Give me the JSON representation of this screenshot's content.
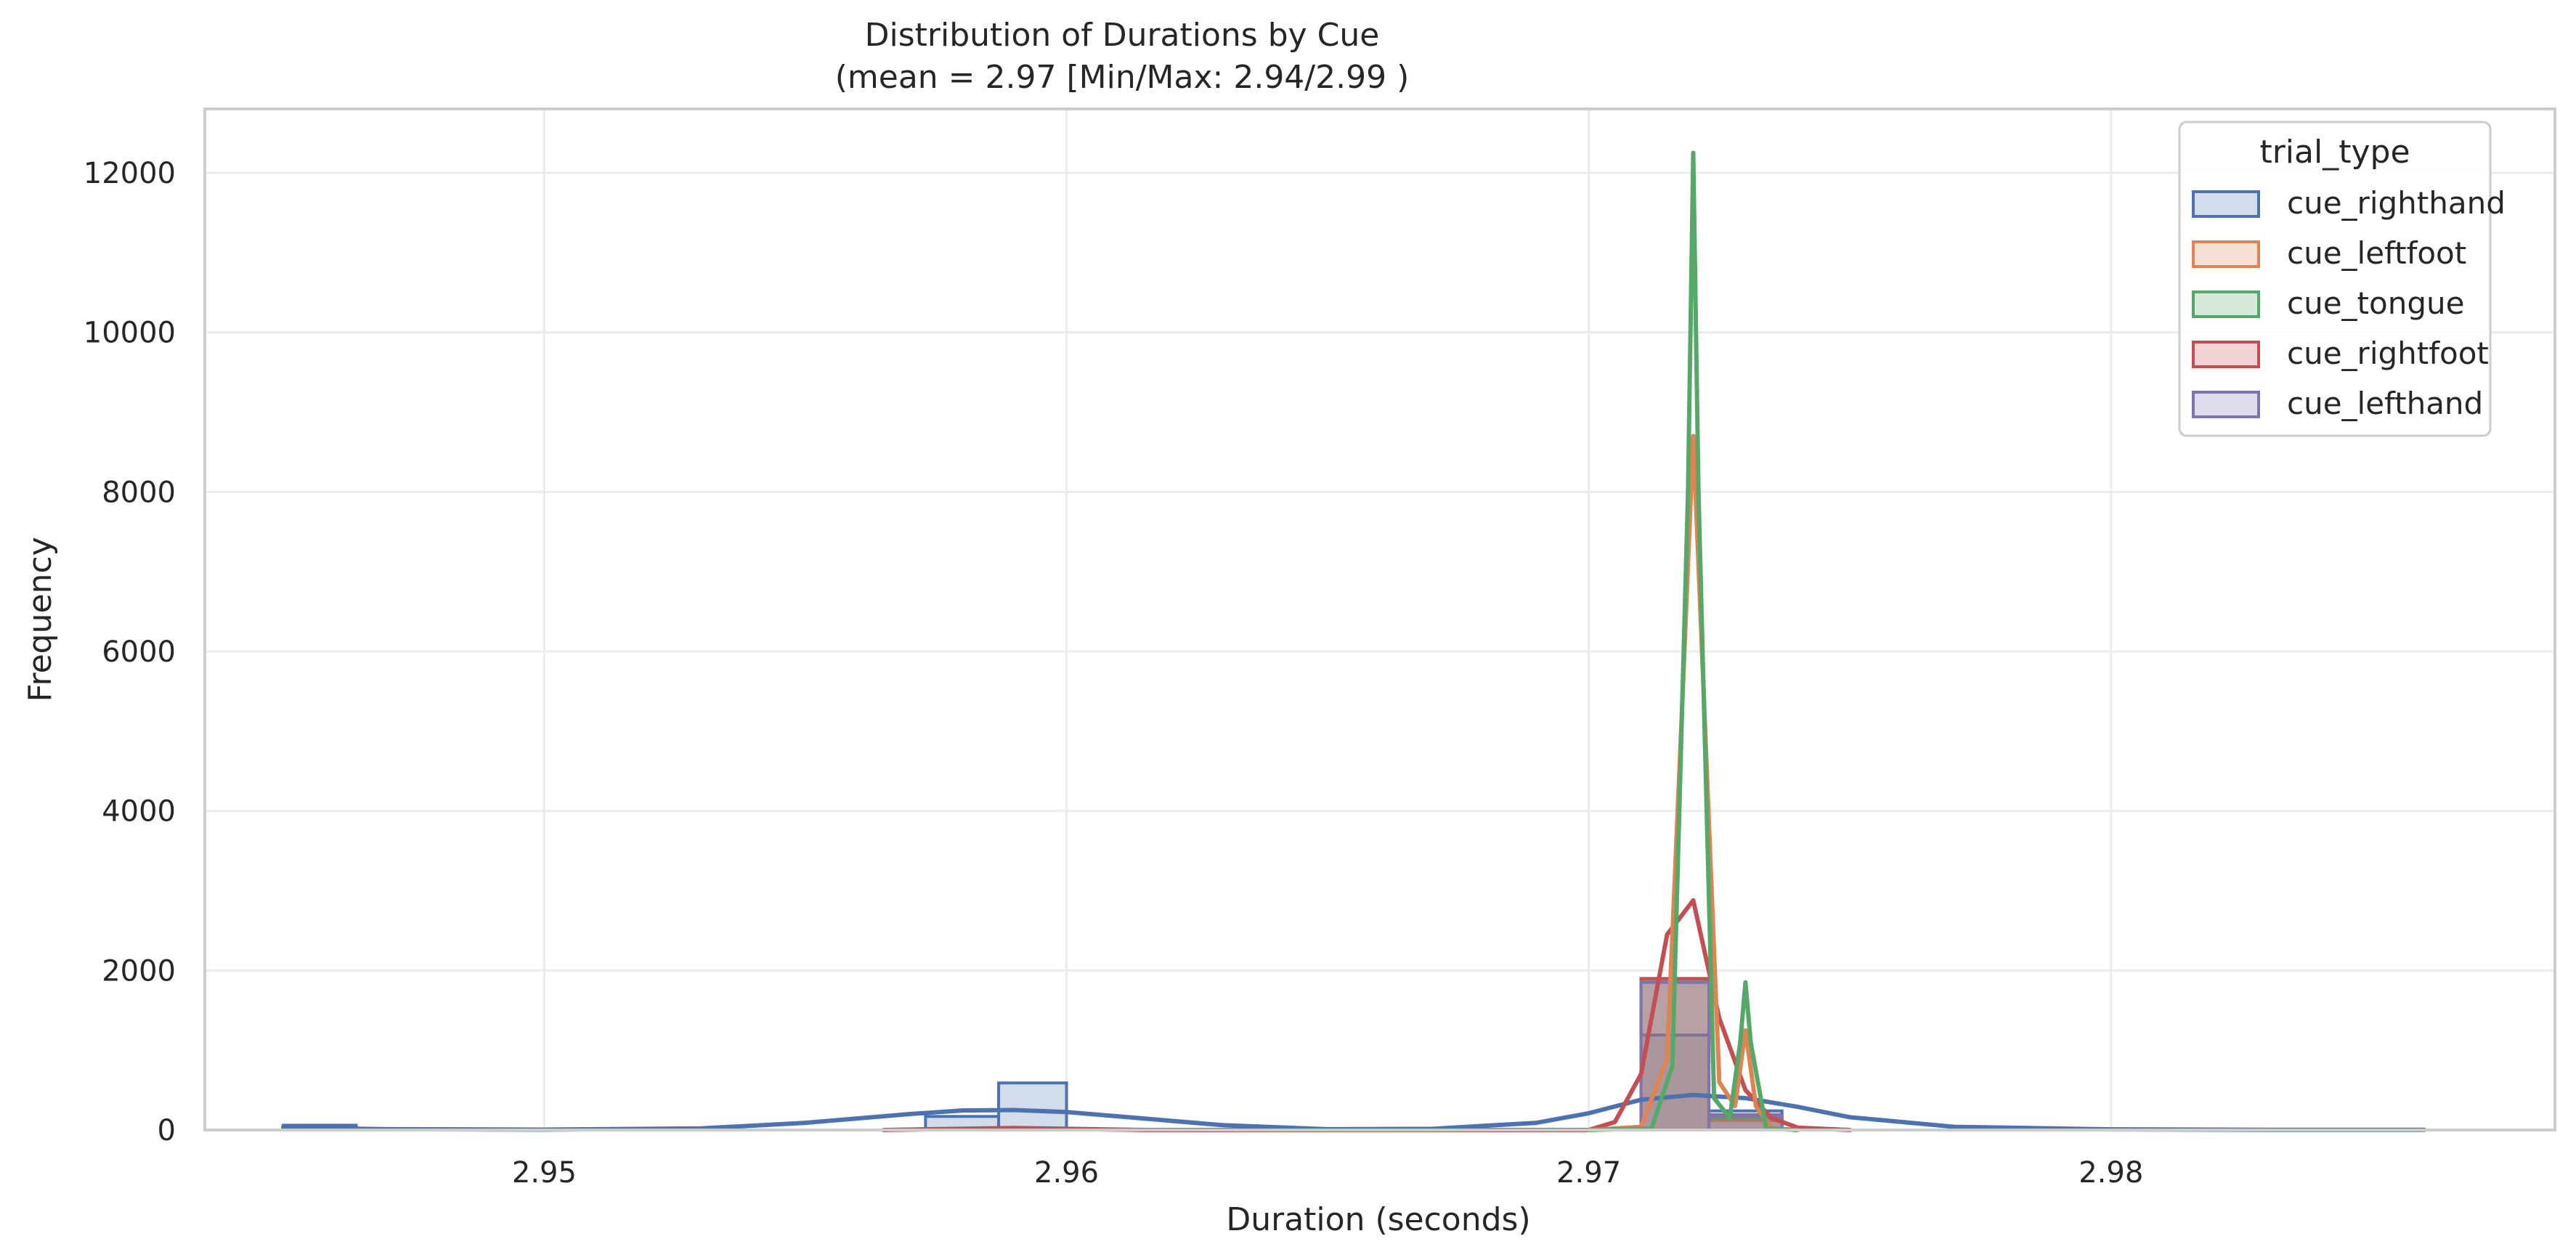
{
  "chart_data": {
    "type": "histogram",
    "title": "Distribution of Durations by Cue",
    "subtitle": "(mean = 2.97 [Min/Max: 2.94/2.99 )",
    "xlabel": "Duration (seconds)",
    "ylabel": "Frequency",
    "xlim": [
      2.9435,
      2.9885
    ],
    "ylim": [
      0,
      12800
    ],
    "x_ticks": [
      2.95,
      2.96,
      2.97,
      2.98
    ],
    "x_tick_labels": [
      "2.95",
      "2.96",
      "2.97",
      "2.98"
    ],
    "y_ticks": [
      0,
      2000,
      4000,
      6000,
      8000,
      10000,
      12000
    ],
    "y_tick_labels": [
      "0",
      "2000",
      "4000",
      "6000",
      "8000",
      "10000",
      "12000"
    ],
    "grid": true,
    "legend": {
      "title": "trial_type",
      "placement": "top-right"
    },
    "series": [
      {
        "name": "cue_righthand",
        "color": "#4c72b0",
        "bins": [
          {
            "x0": 2.945,
            "x1": 2.9464,
            "count": 60
          },
          {
            "x0": 2.9573,
            "x1": 2.9587,
            "count": 170
          },
          {
            "x0": 2.9587,
            "x1": 2.96,
            "count": 590
          },
          {
            "x0": 2.971,
            "x1": 2.9723,
            "count": 1190
          },
          {
            "x0": 2.9723,
            "x1": 2.9737,
            "count": 240
          }
        ],
        "kde": {
          "x": [
            2.945,
            2.947,
            2.95,
            2.953,
            2.955,
            2.957,
            2.958,
            2.959,
            2.96,
            2.961,
            2.963,
            2.965,
            2.967,
            2.969,
            2.97,
            2.971,
            2.972,
            2.973,
            2.974,
            2.975,
            2.977,
            2.98,
            2.983,
            2.986
          ],
          "y": [
            30,
            10,
            5,
            20,
            90,
            200,
            245,
            250,
            225,
            170,
            60,
            10,
            15,
            90,
            210,
            380,
            440,
            400,
            290,
            160,
            40,
            8,
            3,
            2
          ]
        }
      },
      {
        "name": "cue_leftfoot",
        "color": "#dd8452",
        "bins": [
          {
            "x0": 2.971,
            "x1": 2.9723,
            "count": 1870
          },
          {
            "x0": 2.9723,
            "x1": 2.9737,
            "count": 120
          }
        ],
        "kde": {
          "x": [
            2.97,
            2.971,
            2.9715,
            2.9718,
            2.972,
            2.9722,
            2.9725,
            2.9728,
            2.973,
            2.9732,
            2.9735,
            2.974
          ],
          "y": [
            0,
            40,
            900,
            5500,
            8700,
            5500,
            600,
            300,
            1250,
            300,
            20,
            0
          ]
        }
      },
      {
        "name": "cue_tongue",
        "color": "#55a868",
        "bins": [
          {
            "x0": 2.971,
            "x1": 2.9723,
            "count": 1870
          },
          {
            "x0": 2.9723,
            "x1": 2.9737,
            "count": 150
          }
        ],
        "kde": {
          "x": [
            2.97,
            2.9712,
            2.9716,
            2.9719,
            2.972,
            2.9721,
            2.9724,
            2.9727,
            2.9729,
            2.973,
            2.9731,
            2.9734,
            2.974
          ],
          "y": [
            0,
            20,
            800,
            8000,
            12250,
            8000,
            400,
            150,
            1100,
            1850,
            1100,
            20,
            0
          ]
        }
      },
      {
        "name": "cue_rightfoot",
        "color": "#c44e52",
        "bins": [
          {
            "x0": 2.971,
            "x1": 2.9723,
            "count": 1900
          },
          {
            "x0": 2.9723,
            "x1": 2.9737,
            "count": 190
          }
        ],
        "kde": {
          "x": [
            2.9565,
            2.9585,
            2.959,
            2.9595,
            2.9615,
            2.97,
            2.9705,
            2.971,
            2.9715,
            2.972,
            2.9725,
            2.973,
            2.9735,
            2.974,
            2.975
          ],
          "y": [
            0,
            20,
            25,
            20,
            0,
            0,
            100,
            700,
            2450,
            2880,
            1400,
            500,
            150,
            30,
            0
          ]
        }
      },
      {
        "name": "cue_lefthand",
        "color": "#8172b3",
        "bins": [
          {
            "x0": 2.971,
            "x1": 2.9723,
            "count": 1850
          },
          {
            "x0": 2.9723,
            "x1": 2.9737,
            "count": 180
          }
        ],
        "kde": {
          "x": [],
          "y": []
        }
      }
    ]
  }
}
